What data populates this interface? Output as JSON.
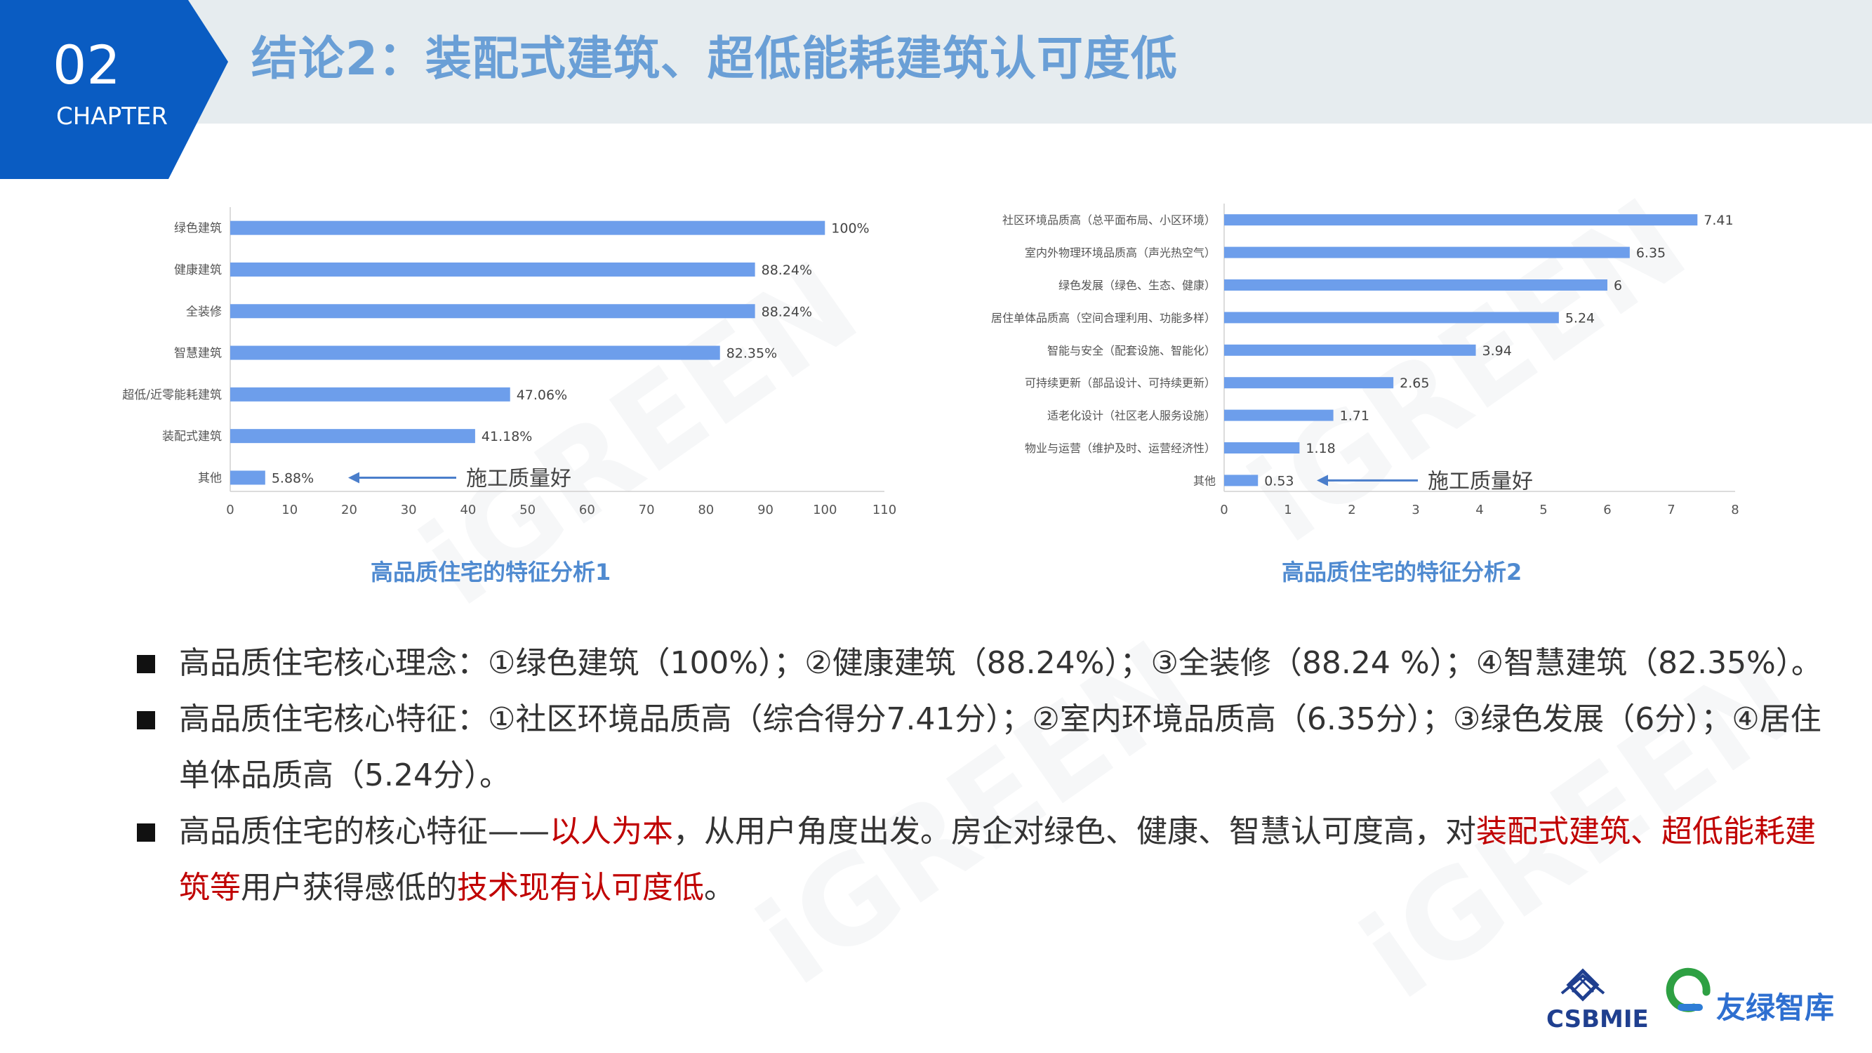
{
  "header": {
    "chapter_number": "02",
    "chapter_label": "CHAPTER",
    "title": "结论2：装配式建筑、超低能耗建筑认可度低"
  },
  "watermark": "iGREEN",
  "chart_data": [
    {
      "type": "bar",
      "orientation": "horizontal",
      "title": "高品质住宅的特征分析1",
      "categories": [
        "绿色建筑",
        "健康建筑",
        "全装修",
        "智慧建筑",
        "超低/近零能耗建筑",
        "装配式建筑",
        "其他"
      ],
      "values": [
        100,
        88.24,
        88.24,
        82.35,
        47.06,
        41.18,
        5.88
      ],
      "value_labels": [
        "100%",
        "88.24%",
        "88.24%",
        "82.35%",
        "47.06%",
        "41.18%",
        "5.88%"
      ],
      "xticks": [
        0,
        10,
        20,
        30,
        40,
        50,
        60,
        70,
        80,
        90,
        100,
        110
      ],
      "xlim": [
        0,
        110
      ],
      "annotation": "施工质量好",
      "bar_color": "#6d9eeb"
    },
    {
      "type": "bar",
      "orientation": "horizontal",
      "title": "高品质住宅的特征分析2",
      "categories": [
        "社区环境品质高（总平面布局、小区环境）",
        "室内外物理环境品质高（声光热空气）",
        "绿色发展（绿色、生态、健康）",
        "居住单体品质高（空间合理利用、功能多样）",
        "智能与安全（配套设施、智能化）",
        "可持续更新（部品设计、可持续更新）",
        "适老化设计（社区老人服务设施）",
        "物业与运营（维护及时、运营经济性）",
        "其他"
      ],
      "values": [
        7.41,
        6.35,
        6,
        5.24,
        3.94,
        2.65,
        1.71,
        1.18,
        0.53
      ],
      "value_labels": [
        "7.41",
        "6.35",
        "6",
        "5.24",
        "3.94",
        "2.65",
        "1.71",
        "1.18",
        "0.53"
      ],
      "xticks": [
        0,
        1,
        2,
        3,
        4,
        5,
        6,
        7,
        8
      ],
      "xlim": [
        0,
        8
      ],
      "annotation": "施工质量好",
      "bar_color": "#6d9eeb"
    }
  ],
  "bullets": [
    {
      "segments": [
        {
          "text": "高品质住宅核心理念：①绿色建筑（100%）；②健康建筑（88.24%）；③全装修（88.24 %）；④智慧建筑（82.35%）。",
          "hl": false
        }
      ]
    },
    {
      "segments": [
        {
          "text": "高品质住宅核心特征：①社区环境品质高（综合得分7.41分）；②室内环境品质高（6.35分）；③绿色发展（6分）；④居住单体品质高（5.24分）。",
          "hl": false
        }
      ]
    },
    {
      "segments": [
        {
          "text": "高品质住宅的核心特征——",
          "hl": false
        },
        {
          "text": "以人为本",
          "hl": true
        },
        {
          "text": "，从用户角度出发。房企对绿色、健康、智慧认可度高，对",
          "hl": false
        },
        {
          "text": "装配式建筑、超低能耗建筑等",
          "hl": true
        },
        {
          "text": "用户获得感低的",
          "hl": false
        },
        {
          "text": "技术现有认可度低",
          "hl": true
        },
        {
          "text": "。",
          "hl": false
        }
      ]
    }
  ],
  "logos": {
    "logo1_text": "CSBMIE",
    "logo2_text": "友绿智库"
  },
  "colors": {
    "accent": "#0a5cc2",
    "title": "#6a9fd6",
    "highlight": "#c00000",
    "bar": "#6d9eeb",
    "caption": "#4f8ad0"
  }
}
